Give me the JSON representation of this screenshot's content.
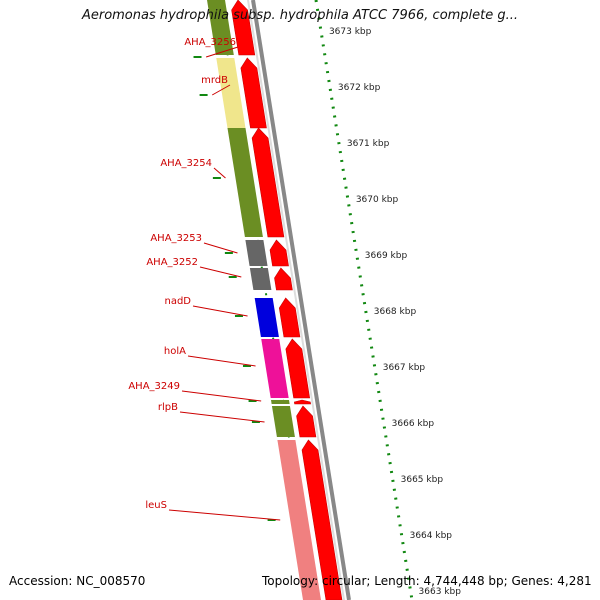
{
  "title": "Aeromonas hydrophila subsp. hydrophila ATCC 7966, complete g...",
  "footer": {
    "accession": "Accession: NC_008570",
    "summary": "Topology: circular; Length: 4,744,448 bp; Genes: 4,281"
  },
  "colors": {
    "label": "#cc0000",
    "cds_strand": "#ff0000",
    "backbone": "#888888",
    "ruler_dots": "#118811"
  },
  "genes": [
    {
      "name": "AHA_3256",
      "color": "#6b8e23"
    },
    {
      "name": "mrdB",
      "color": "#f0e68c"
    },
    {
      "name": "AHA_3254",
      "color": "#6b8e23"
    },
    {
      "name": "AHA_3253",
      "color": "#666666"
    },
    {
      "name": "AHA_3252",
      "color": "#666666"
    },
    {
      "name": "nadD",
      "color": "#0000dd"
    },
    {
      "name": "holA",
      "color": "#ee1199"
    },
    {
      "name": "AHA_3249",
      "color": "#6b8e23"
    },
    {
      "name": "rlpB",
      "color": "#6b8e23"
    },
    {
      "name": "leuS",
      "color": "#f08080"
    }
  ],
  "ticks": [
    "3673 kbp",
    "3672 kbp",
    "3671 kbp",
    "3670 kbp",
    "3669 kbp",
    "3668 kbp",
    "3667 kbp",
    "3666 kbp",
    "3665 kbp",
    "3664 kbp",
    "3663 kbp"
  ]
}
